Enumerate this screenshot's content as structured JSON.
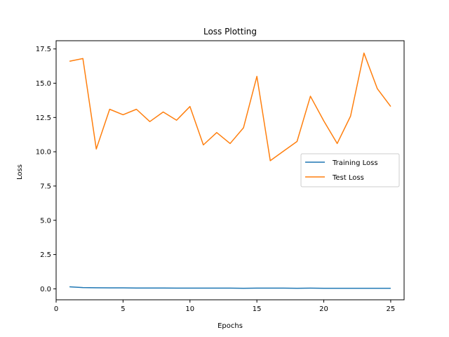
{
  "chart_data": {
    "type": "line",
    "title": "Loss Plotting",
    "xlabel": "Epochs",
    "ylabel": "Loss",
    "xlim": [
      0,
      26
    ],
    "ylim": [
      -0.8,
      18.1
    ],
    "xticks": [
      0,
      5,
      10,
      15,
      20,
      25
    ],
    "xtick_labels": [
      "0",
      "5",
      "10",
      "15",
      "20",
      "25"
    ],
    "yticks": [
      0.0,
      2.5,
      5.0,
      7.5,
      10.0,
      12.5,
      15.0,
      17.5
    ],
    "ytick_labels": [
      "0.0",
      "2.5",
      "5.0",
      "7.5",
      "10.0",
      "12.5",
      "15.0",
      "17.5"
    ],
    "grid": false,
    "legend_position": "center-right",
    "x": [
      1,
      2,
      3,
      4,
      5,
      6,
      7,
      8,
      9,
      10,
      11,
      12,
      13,
      14,
      15,
      16,
      17,
      18,
      19,
      20,
      21,
      22,
      23,
      24,
      25
    ],
    "series": [
      {
        "name": "Training Loss",
        "color": "#1f77b4",
        "values": [
          0.15,
          0.09,
          0.08,
          0.07,
          0.07,
          0.06,
          0.06,
          0.06,
          0.05,
          0.05,
          0.05,
          0.05,
          0.05,
          0.04,
          0.05,
          0.05,
          0.05,
          0.04,
          0.05,
          0.04,
          0.04,
          0.04,
          0.04,
          0.04,
          0.04
        ]
      },
      {
        "name": "Test Loss",
        "color": "#ff7f0e",
        "values": [
          16.6,
          16.8,
          10.2,
          13.1,
          12.7,
          13.1,
          12.2,
          12.9,
          12.3,
          13.3,
          10.5,
          11.4,
          10.6,
          11.75,
          15.5,
          9.35,
          10.05,
          10.75,
          14.05,
          12.25,
          10.6,
          12.6,
          17.2,
          14.6,
          13.3
        ]
      }
    ]
  }
}
